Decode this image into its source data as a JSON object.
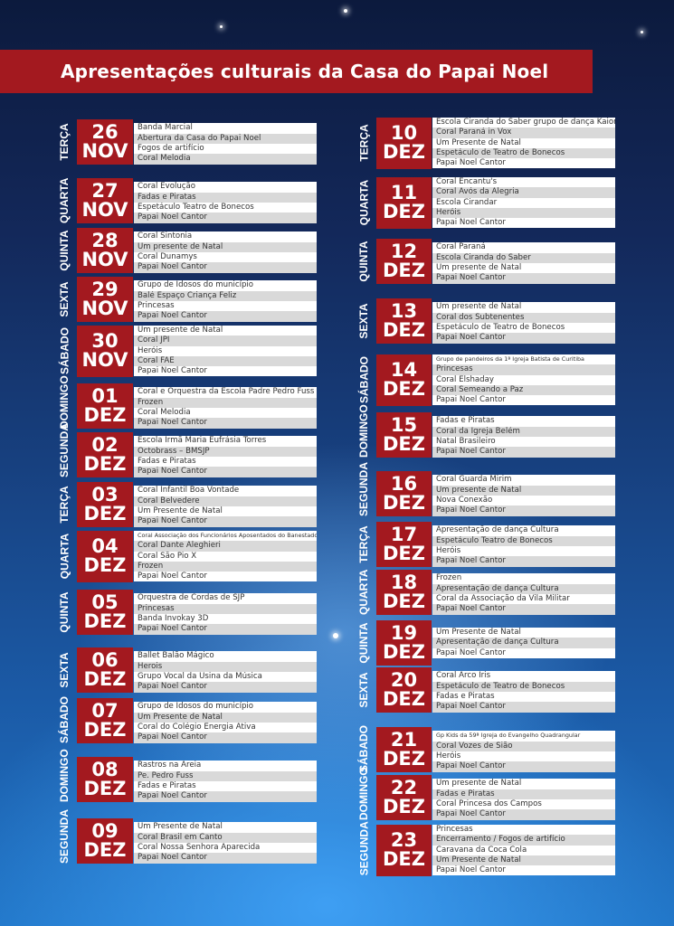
{
  "title": "Apresentações culturais da Casa do Papai  Noel",
  "colors": {
    "accent_red": "#a3191f",
    "row_alt": "#d9d9d9"
  },
  "left_column": [
    {
      "weekday": "TERÇA",
      "day": "26",
      "month": "NOV",
      "events": [
        "Banda Marcial",
        "Abertura da Casa do Papai Noel",
        "Fogos de artifício",
        "Coral Melodia"
      ]
    },
    {
      "weekday": "QUARTA",
      "day": "27",
      "month": "NOV",
      "events": [
        "Coral Evolução",
        "Fadas e Piratas",
        "Espetáculo Teatro de Bonecos",
        "Papai Noel Cantor"
      ]
    },
    {
      "weekday": "QUINTA",
      "day": "28",
      "month": "NOV",
      "events": [
        "Coral Sintonia",
        "Um presente de Natal",
        "Coral Dunamys",
        "Papai Noel Cantor"
      ]
    },
    {
      "weekday": "SEXTA",
      "day": "29",
      "month": "NOV",
      "events": [
        "Grupo de Idosos do município",
        "Balé Espaço Criança Feliz",
        "Princesas",
        "Papai Noel Cantor"
      ]
    },
    {
      "weekday": "SÁBADO",
      "day": "30",
      "month": "NOV",
      "events": [
        "Um presente de Natal",
        "Coral JPI",
        "Heróis",
        "Coral FAE",
        "Papai Noel Cantor"
      ]
    },
    {
      "weekday": "DOMINGO",
      "day": "01",
      "month": "DEZ",
      "events": [
        "Coral e Orquestra da Escola Padre Pedro Fuss –",
        "Frozen",
        "Coral Melodia",
        "Papai Noel Cantor"
      ]
    },
    {
      "weekday": "SEGUNDA",
      "day": "02",
      "month": "DEZ",
      "events": [
        "Escola Irmã Maria Eufrásia Torres",
        "Octobrass – BMSJP",
        "Fadas e Piratas",
        "Papai Noel Cantor"
      ]
    },
    {
      "weekday": "TERÇA",
      "day": "03",
      "month": "DEZ",
      "events": [
        "Coral Infantil Boa Vontade",
        "Coral Belvedere",
        "Um Presente de Natal",
        "Papai Noel Cantor"
      ]
    },
    {
      "weekday": "QUARTA",
      "day": "04",
      "month": "DEZ",
      "events": [
        "Coral Associação dos Funcionários Aposentados do Banestado",
        "Coral Dante Aleghieri",
        "Coral São Pio X",
        "Frozen",
        "Papai Noel Cantor"
      ]
    },
    {
      "weekday": "QUINTA",
      "day": "05",
      "month": "DEZ",
      "events": [
        "Orquestra de Cordas de SJP",
        "Princesas",
        "Banda Invokay 3D",
        "Papai Noel Cantor"
      ]
    },
    {
      "weekday": "SEXTA",
      "day": "06",
      "month": "DEZ",
      "events": [
        "Ballet  Balão Mágico",
        "Herois",
        "Grupo Vocal da Usina da Música",
        "Papai Noel Cantor"
      ]
    },
    {
      "weekday": "SÁBADO",
      "day": "07",
      "month": "DEZ",
      "events": [
        "Grupo de Idosos do município",
        "Um Presente de Natal",
        "Coral do Colégio Energia Ativa",
        "Papai Noel Cantor"
      ]
    },
    {
      "weekday": "DOMINGO",
      "day": "08",
      "month": "DEZ",
      "events": [
        "Rastros na Areia",
        "Pe. Pedro Fuss",
        "Fadas e Piratas",
        "Papai Noel Cantor"
      ]
    },
    {
      "weekday": "SEGUNDA",
      "day": "09",
      "month": "DEZ",
      "events": [
        "Um Presente de Natal",
        "Coral Brasil em Canto",
        "Coral Nossa Senhora Aparecida",
        "Papai Noel Cantor"
      ]
    }
  ],
  "right_column": [
    {
      "weekday": "TERÇA",
      "day": "10",
      "month": "DEZ",
      "events": [
        "Escola Ciranda do Saber grupo de dança Kaiorra",
        "Coral Paraná in Vox",
        "Um Presente de Natal",
        "Espetáculo de Teatro de Bonecos",
        "Papai Noel Cantor"
      ]
    },
    {
      "weekday": "QUARTA",
      "day": "11",
      "month": "DEZ",
      "events": [
        "Coral Encantu's",
        "Coral Avós da Alegria",
        "Escola Cirandar",
        "Heróis",
        "Papai Noel Cantor"
      ]
    },
    {
      "weekday": "QUINTA",
      "day": "12",
      "month": "DEZ",
      "events": [
        "Coral Paraná",
        "Escola Ciranda do Saber",
        "Um presente de Natal",
        "Papai Noel Cantor"
      ]
    },
    {
      "weekday": "SEXTA",
      "day": "13",
      "month": "DEZ",
      "events": [
        "Um presente de Natal",
        "Coral dos Subtenentes",
        "Espetáculo de Teatro de Bonecos",
        "Papai Noel Cantor"
      ]
    },
    {
      "weekday": "SÁBADO",
      "day": "14",
      "month": "DEZ",
      "events": [
        "Grupo de pandeiros da 1ª Igreja Batista de Curitiba",
        "Princesas",
        "Coral Elshaday",
        "Coral Semeando a Paz",
        "Papai Noel Cantor"
      ]
    },
    {
      "weekday": "DOMINGO",
      "day": "15",
      "month": "DEZ",
      "events": [
        "Fadas e Piratas",
        "Coral da Igreja Belém",
        "Natal Brasileiro",
        "Papai Noel Cantor"
      ]
    },
    {
      "weekday": "SEGUNDA",
      "day": "16",
      "month": "DEZ",
      "events": [
        "Coral Guarda Mirim",
        "Um presente de Natal",
        "Nova Conexão",
        "Papai Noel Cantor"
      ]
    },
    {
      "weekday": "TERÇA",
      "day": "17",
      "month": "DEZ",
      "events": [
        "Apresentação de dança Cultura",
        "Espetáculo Teatro de Bonecos",
        "Heróis",
        "Papai Noel Cantor"
      ]
    },
    {
      "weekday": "QUARTA",
      "day": "18",
      "month": "DEZ",
      "events": [
        "Frozen",
        "Apresentação de dança Cultura",
        "Coral da Associação da Vila Militar",
        "Papai Noel Cantor"
      ]
    },
    {
      "weekday": "QUINTA",
      "day": "19",
      "month": "DEZ",
      "events": [
        "Um Presente de Natal",
        "Apresentação de dança Cultura",
        "Papai Noel Cantor"
      ]
    },
    {
      "weekday": "SEXTA",
      "day": "20",
      "month": "DEZ",
      "events": [
        "Coral Arco Iris",
        "Espetáculo de Teatro de Bonecos",
        "Fadas e Piratas",
        "Papai Noel Cantor"
      ]
    },
    {
      "weekday": "SÁBADO",
      "day": "21",
      "month": "DEZ",
      "events": [
        "Gp Kids da 59ª Igreja do Evangelho Quadrangular",
        "Coral Vozes de Sião",
        "Heróis",
        "Papai Noel Cantor"
      ]
    },
    {
      "weekday": "DOMINGO",
      "day": "22",
      "month": "DEZ",
      "events": [
        "Um presente de Natal",
        "Fadas e Piratas",
        "Coral Princesa dos Campos",
        "Papai Noel Cantor"
      ]
    },
    {
      "weekday": "SEGUNDA",
      "day": "23",
      "month": "DEZ",
      "events": [
        "Princesas",
        "Encerramento / Fogos de artifício",
        "Caravana da Coca Cola",
        "Um Presente de Natal",
        "Papai Noel Cantor"
      ]
    }
  ]
}
